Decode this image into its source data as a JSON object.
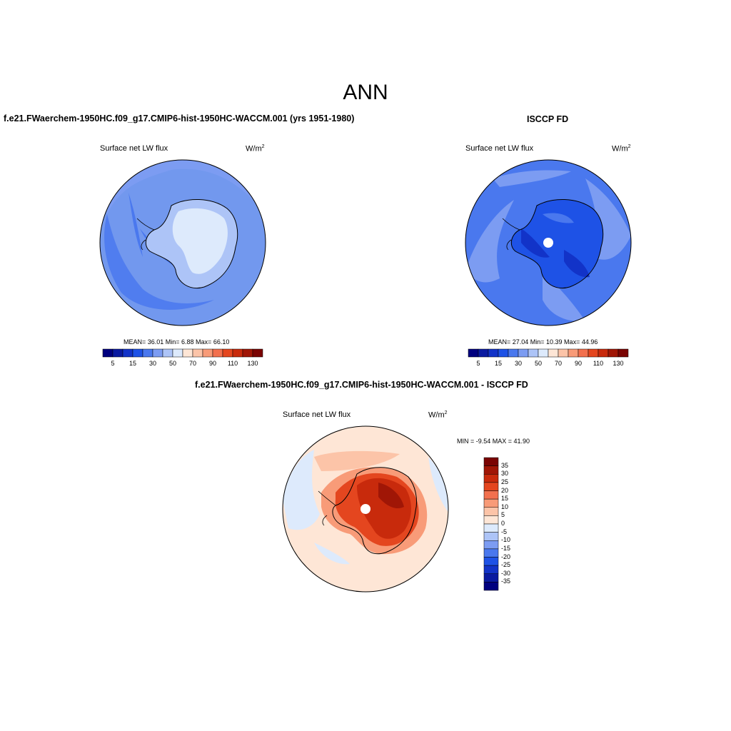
{
  "title": "ANN",
  "panels": [
    {
      "title": "f.e21.FWaerchem-1950HC.f09_g17.CMIP6-hist-1950HC-WACCM.001 (yrs 1951-1980)",
      "variable": "Surface net LW flux",
      "units": "W/m",
      "units_sup": "2",
      "stats": "MEAN=  36.01  Min=   6.88  Max=  66.10"
    },
    {
      "title": "ISCCP FD",
      "variable": "Surface net LW flux",
      "units": "W/m",
      "units_sup": "2",
      "stats": "MEAN=  27.04  Min=  10.39  Max=  44.96"
    },
    {
      "title": "f.e21.FWaerchem-1950HC.f09_g17.CMIP6-hist-1950HC-WACCM.001 - ISCCP FD",
      "variable": "Surface net LW flux",
      "units": "W/m",
      "units_sup": "2",
      "stats": "MIN =  -9.54 MAX =  41.90"
    }
  ],
  "colorbar_abs": {
    "labels": [
      "5",
      "15",
      "30",
      "50",
      "70",
      "90",
      "110",
      "130"
    ],
    "colors": [
      "#00007f",
      "#0a1aa0",
      "#1233c8",
      "#1e52e6",
      "#4a78ee",
      "#7c9cf2",
      "#adc4f7",
      "#ddeafc",
      "#fee6d6",
      "#fcc4a8",
      "#f89b78",
      "#f2704e",
      "#e4461f",
      "#c82a0c",
      "#a01606",
      "#7a0403"
    ]
  },
  "colorbar_diff": {
    "labels": [
      "35",
      "30",
      "25",
      "20",
      "15",
      "10",
      "5",
      "0",
      "-5",
      "-10",
      "-15",
      "-20",
      "-25",
      "-30",
      "-35"
    ],
    "colors": [
      "#7a0403",
      "#a01606",
      "#c82a0c",
      "#e4461f",
      "#f2704e",
      "#f89b78",
      "#fcc4a8",
      "#fee6d6",
      "#ddeafc",
      "#adc4f7",
      "#7c9cf2",
      "#4a78ee",
      "#1e52e6",
      "#1233c8",
      "#0a1aa0",
      "#00007f"
    ]
  }
}
